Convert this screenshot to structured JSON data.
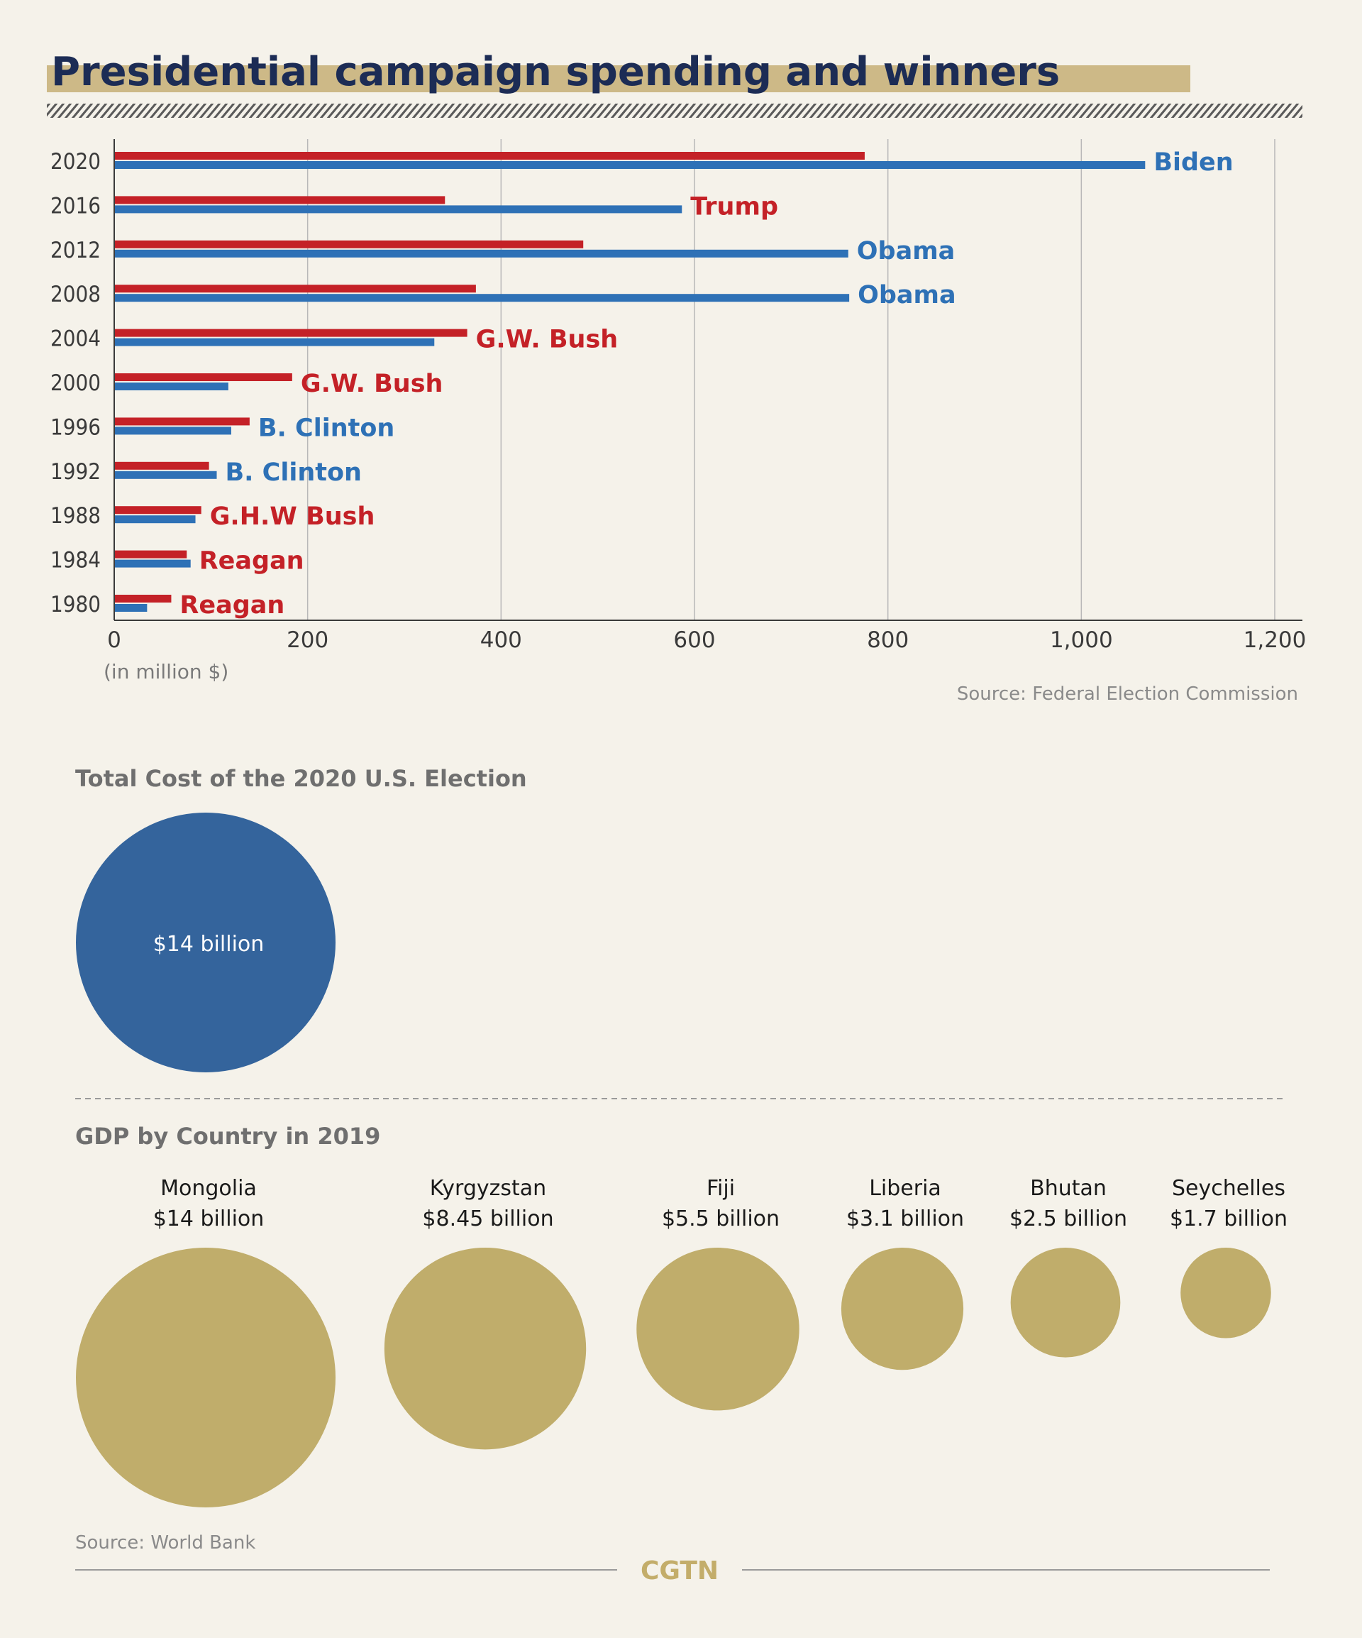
{
  "title": "Presidential campaign spending and winners",
  "colors": {
    "republican": "#c42127",
    "democrat": "#2e71b6",
    "title_band": "#cdb987",
    "title": "#1c2c55",
    "election_circle": "#34649c",
    "gdp_circle": "#c0ad6b",
    "brand": "#c3ad6a"
  },
  "chart_data": [
    {
      "type": "bar",
      "orientation": "horizontal",
      "title": "Presidential campaign spending and winners",
      "unit_label": "(in million $)",
      "xlim": [
        0,
        1200
      ],
      "x_ticks": [
        "0",
        "200",
        "400",
        "600",
        "800",
        "1,000",
        "1,200"
      ],
      "x_tick_values": [
        0,
        200,
        400,
        600,
        800,
        1000,
        1200
      ],
      "grid": true,
      "categories": [
        "2020",
        "2016",
        "2012",
        "2008",
        "2004",
        "2000",
        "1996",
        "1992",
        "1988",
        "1984",
        "1980"
      ],
      "series": [
        {
          "color": "#c42127",
          "values": [
            776,
            342,
            485,
            374,
            365,
            184,
            140,
            98,
            90,
            75,
            59
          ]
        },
        {
          "color": "#2e71b6",
          "values": [
            1066,
            587,
            759,
            760,
            331,
            118,
            121,
            106,
            84,
            79,
            34
          ]
        }
      ],
      "winners": [
        {
          "label": "Biden",
          "color": "#2e71b6"
        },
        {
          "label": "Trump",
          "color": "#c42127"
        },
        {
          "label": "Obama",
          "color": "#2e71b6"
        },
        {
          "label": "Obama",
          "color": "#2e71b6"
        },
        {
          "label": "G.W. Bush",
          "color": "#c42127"
        },
        {
          "label": "G.W. Bush",
          "color": "#c42127"
        },
        {
          "label": "B. Clinton",
          "color": "#2e71b6"
        },
        {
          "label": "B. Clinton",
          "color": "#2e71b6"
        },
        {
          "label": "G.H.W Bush",
          "color": "#c42127"
        },
        {
          "label": "Reagan",
          "color": "#c42127"
        },
        {
          "label": "Reagan",
          "color": "#c42127"
        }
      ],
      "source": "Source: Federal Election Commission"
    },
    {
      "type": "bubble",
      "title": "Total Cost of the 2020 U.S. Election",
      "items": [
        {
          "label": "$14 billion",
          "value": 14
        }
      ]
    },
    {
      "type": "bubble",
      "title": "GDP by Country in 2019",
      "items": [
        {
          "name": "Mongolia",
          "label": "$14 billion",
          "value": 14
        },
        {
          "name": "Kyrgyzstan",
          "label": "$8.45 billion",
          "value": 8.45
        },
        {
          "name": "Fiji",
          "label": "$5.5 billion",
          "value": 5.5
        },
        {
          "name": "Liberia",
          "label": "$3.1 billion",
          "value": 3.1
        },
        {
          "name": "Bhutan",
          "label": "$2.5 billion",
          "value": 2.5
        },
        {
          "name": "Seychelles",
          "label": "$1.7 billion",
          "value": 1.7
        }
      ],
      "source": "Source: World Bank"
    }
  ],
  "brand": "CGTN"
}
